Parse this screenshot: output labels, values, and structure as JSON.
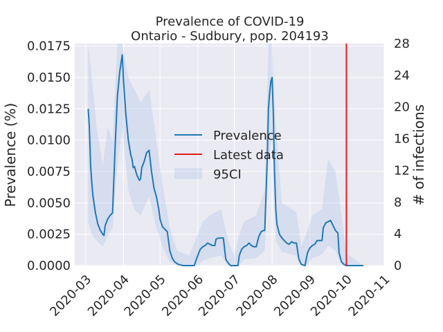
{
  "chart_data": {
    "type": "line",
    "title": "Prevalence of COVID-19",
    "subtitle": "Ontario - Sudbury, pop. 204193",
    "ylabel": "Prevalence (%)",
    "y2label": "# of infections",
    "ylim": [
      0,
      0.0177
    ],
    "y2lim": [
      0,
      28
    ],
    "xlim": [
      "2020-02-21",
      "2020-11-01"
    ],
    "y_ticks": [
      "0.0000",
      "0.0025",
      "0.0050",
      "0.0075",
      "0.0100",
      "0.0125",
      "0.0150",
      "0.0175"
    ],
    "y2_ticks": [
      "0",
      "4",
      "8",
      "12",
      "16",
      "20",
      "24",
      "28"
    ],
    "x_ticks": [
      "2020-03",
      "2020-04",
      "2020-05",
      "2020-06",
      "2020-07",
      "2020-08",
      "2020-09",
      "2020-10",
      "2020-11"
    ],
    "grid": true,
    "legend_position": "center",
    "latest_data_date": "2020-10-01",
    "series": [
      {
        "name": "Prevalence",
        "color": "#1f77b4",
        "points": [
          [
            "2020-03-03",
            0.0125
          ],
          [
            "2020-03-04",
            0.011
          ],
          [
            "2020-03-05",
            0.008
          ],
          [
            "2020-03-06",
            0.0066
          ],
          [
            "2020-03-07",
            0.0055
          ],
          [
            "2020-03-09",
            0.0042
          ],
          [
            "2020-03-11",
            0.0033
          ],
          [
            "2020-03-13",
            0.0028
          ],
          [
            "2020-03-15",
            0.0025
          ],
          [
            "2020-03-16",
            0.0024
          ],
          [
            "2020-03-17",
            0.0032
          ],
          [
            "2020-03-19",
            0.0037
          ],
          [
            "2020-03-21",
            0.004
          ],
          [
            "2020-03-23",
            0.0042
          ],
          [
            "2020-03-25",
            0.0092
          ],
          [
            "2020-03-27",
            0.0135
          ],
          [
            "2020-03-29",
            0.0155
          ],
          [
            "2020-03-31",
            0.0168
          ],
          [
            "2020-04-01",
            0.0148
          ],
          [
            "2020-04-03",
            0.012
          ],
          [
            "2020-04-05",
            0.01
          ],
          [
            "2020-04-07",
            0.0088
          ],
          [
            "2020-04-08",
            0.0085
          ],
          [
            "2020-04-09",
            0.0078
          ],
          [
            "2020-04-10",
            0.0079
          ],
          [
            "2020-04-12",
            0.0072
          ],
          [
            "2020-04-14",
            0.0068
          ],
          [
            "2020-04-15",
            0.0069
          ],
          [
            "2020-04-16",
            0.0078
          ],
          [
            "2020-04-18",
            0.0083
          ],
          [
            "2020-04-20",
            0.009
          ],
          [
            "2020-04-22",
            0.0092
          ],
          [
            "2020-04-24",
            0.0075
          ],
          [
            "2020-04-26",
            0.0062
          ],
          [
            "2020-04-28",
            0.0055
          ],
          [
            "2020-04-30",
            0.0045
          ],
          [
            "2020-05-01",
            0.0037
          ],
          [
            "2020-05-03",
            0.0031
          ],
          [
            "2020-05-05",
            0.0029
          ],
          [
            "2020-05-07",
            0.0027
          ],
          [
            "2020-05-09",
            0.0012
          ],
          [
            "2020-05-11",
            0.0006
          ],
          [
            "2020-05-13",
            0.0003
          ],
          [
            "2020-05-16",
            0.0001
          ],
          [
            "2020-05-20",
            0.0
          ],
          [
            "2020-05-25",
            0.0
          ],
          [
            "2020-05-29",
            0.0
          ],
          [
            "2020-06-01",
            0.0008
          ],
          [
            "2020-06-03",
            0.0013
          ],
          [
            "2020-06-05",
            0.0015
          ],
          [
            "2020-06-07",
            0.0016
          ],
          [
            "2020-06-09",
            0.0018
          ],
          [
            "2020-06-11",
            0.0017
          ],
          [
            "2020-06-13",
            0.0016
          ],
          [
            "2020-06-15",
            0.0016
          ],
          [
            "2020-06-16",
            0.0021
          ],
          [
            "2020-06-18",
            0.0022
          ],
          [
            "2020-06-20",
            0.0022
          ],
          [
            "2020-06-22",
            0.0022
          ],
          [
            "2020-06-24",
            0.0005
          ],
          [
            "2020-06-26",
            0.0002
          ],
          [
            "2020-06-28",
            0.0
          ],
          [
            "2020-07-01",
            0.0
          ],
          [
            "2020-07-04",
            0.0
          ],
          [
            "2020-07-05",
            0.0008
          ],
          [
            "2020-07-07",
            0.0013
          ],
          [
            "2020-07-09",
            0.0015
          ],
          [
            "2020-07-11",
            0.0016
          ],
          [
            "2020-07-13",
            0.0018
          ],
          [
            "2020-07-15",
            0.0016
          ],
          [
            "2020-07-17",
            0.0015
          ],
          [
            "2020-07-19",
            0.0015
          ],
          [
            "2020-07-21",
            0.0023
          ],
          [
            "2020-07-23",
            0.0027
          ],
          [
            "2020-07-25",
            0.0028
          ],
          [
            "2020-07-26",
            0.0028
          ],
          [
            "2020-07-28",
            0.0085
          ],
          [
            "2020-07-29",
            0.0125
          ],
          [
            "2020-07-30",
            0.0138
          ],
          [
            "2020-07-31",
            0.0147
          ],
          [
            "2020-08-01",
            0.015
          ],
          [
            "2020-08-02",
            0.012
          ],
          [
            "2020-08-03",
            0.0075
          ],
          [
            "2020-08-04",
            0.0045
          ],
          [
            "2020-08-05",
            0.0033
          ],
          [
            "2020-08-07",
            0.0025
          ],
          [
            "2020-08-09",
            0.0022
          ],
          [
            "2020-08-11",
            0.002
          ],
          [
            "2020-08-13",
            0.0018
          ],
          [
            "2020-08-15",
            0.0017
          ],
          [
            "2020-08-17",
            0.0019
          ],
          [
            "2020-08-19",
            0.0018
          ],
          [
            "2020-08-21",
            0.0018
          ],
          [
            "2020-08-23",
            0.0005
          ],
          [
            "2020-08-25",
            0.0001
          ],
          [
            "2020-08-28",
            0.0
          ],
          [
            "2020-08-30",
            0.001
          ],
          [
            "2020-09-01",
            0.0014
          ],
          [
            "2020-09-03",
            0.0016
          ],
          [
            "2020-09-05",
            0.0017
          ],
          [
            "2020-09-07",
            0.002
          ],
          [
            "2020-09-09",
            0.002
          ],
          [
            "2020-09-11",
            0.002
          ],
          [
            "2020-09-12",
            0.003
          ],
          [
            "2020-09-14",
            0.0034
          ],
          [
            "2020-09-16",
            0.0035
          ],
          [
            "2020-09-18",
            0.0036
          ],
          [
            "2020-09-20",
            0.0032
          ],
          [
            "2020-09-22",
            0.0028
          ],
          [
            "2020-09-24",
            0.0026
          ],
          [
            "2020-09-25",
            0.001
          ],
          [
            "2020-09-27",
            0.0003
          ],
          [
            "2020-09-29",
            0.0001
          ],
          [
            "2020-10-01",
            0.0
          ],
          [
            "2020-10-05",
            0.0
          ],
          [
            "2020-10-10",
            0.0
          ],
          [
            "2020-10-15",
            0.0
          ]
        ]
      },
      {
        "name": "95CI",
        "color": "#aec7e8",
        "lower": [
          [
            "2020-03-03",
            0.0035
          ],
          [
            "2020-03-06",
            0.0025
          ],
          [
            "2020-03-10",
            0.002
          ],
          [
            "2020-03-15",
            0.0015
          ],
          [
            "2020-03-19",
            0.0024
          ],
          [
            "2020-03-23",
            0.003
          ],
          [
            "2020-03-27",
            0.008
          ],
          [
            "2020-03-31",
            0.011
          ],
          [
            "2020-04-05",
            0.006
          ],
          [
            "2020-04-10",
            0.0045
          ],
          [
            "2020-04-15",
            0.004
          ],
          [
            "2020-04-22",
            0.0055
          ],
          [
            "2020-04-28",
            0.003
          ],
          [
            "2020-05-03",
            0.0015
          ],
          [
            "2020-05-09",
            0.0003
          ],
          [
            "2020-05-15",
            0.0
          ],
          [
            "2020-06-01",
            0.0
          ],
          [
            "2020-06-05",
            0.0004
          ],
          [
            "2020-06-11",
            0.0006
          ],
          [
            "2020-06-20",
            0.0008
          ],
          [
            "2020-06-26",
            0.0
          ],
          [
            "2020-07-05",
            0.0
          ],
          [
            "2020-07-09",
            0.0005
          ],
          [
            "2020-07-19",
            0.0006
          ],
          [
            "2020-07-26",
            0.0012
          ],
          [
            "2020-07-29",
            0.0085
          ],
          [
            "2020-08-01",
            0.01
          ],
          [
            "2020-08-04",
            0.002
          ],
          [
            "2020-08-09",
            0.0011
          ],
          [
            "2020-08-17",
            0.0009
          ],
          [
            "2020-08-21",
            0.0008
          ],
          [
            "2020-08-25",
            0.0
          ],
          [
            "2020-08-30",
            0.0
          ],
          [
            "2020-09-03",
            0.0006
          ],
          [
            "2020-09-11",
            0.0009
          ],
          [
            "2020-09-16",
            0.0016
          ],
          [
            "2020-09-22",
            0.0012
          ],
          [
            "2020-09-27",
            0.0
          ],
          [
            "2020-10-15",
            0.0
          ]
        ],
        "upper": [
          [
            "2020-03-03",
            0.0177
          ],
          [
            "2020-03-06",
            0.015
          ],
          [
            "2020-03-10",
            0.011
          ],
          [
            "2020-03-15",
            0.008
          ],
          [
            "2020-03-19",
            0.011
          ],
          [
            "2020-03-23",
            0.01
          ],
          [
            "2020-03-27",
            0.0177
          ],
          [
            "2020-03-31",
            0.0177
          ],
          [
            "2020-04-05",
            0.015
          ],
          [
            "2020-04-10",
            0.014
          ],
          [
            "2020-04-15",
            0.013
          ],
          [
            "2020-04-22",
            0.014
          ],
          [
            "2020-04-28",
            0.01
          ],
          [
            "2020-05-03",
            0.0065
          ],
          [
            "2020-05-09",
            0.003
          ],
          [
            "2020-05-15",
            0.0012
          ],
          [
            "2020-05-25",
            0.0008
          ],
          [
            "2020-06-01",
            0.0025
          ],
          [
            "2020-06-05",
            0.0035
          ],
          [
            "2020-06-11",
            0.004
          ],
          [
            "2020-06-20",
            0.0045
          ],
          [
            "2020-06-26",
            0.002
          ],
          [
            "2020-07-01",
            0.0008
          ],
          [
            "2020-07-05",
            0.0025
          ],
          [
            "2020-07-09",
            0.0035
          ],
          [
            "2020-07-19",
            0.004
          ],
          [
            "2020-07-26",
            0.006
          ],
          [
            "2020-07-29",
            0.0177
          ],
          [
            "2020-08-01",
            0.0177
          ],
          [
            "2020-08-04",
            0.011
          ],
          [
            "2020-08-09",
            0.005
          ],
          [
            "2020-08-17",
            0.0045
          ],
          [
            "2020-08-21",
            0.0042
          ],
          [
            "2020-08-25",
            0.0015
          ],
          [
            "2020-08-30",
            0.0028
          ],
          [
            "2020-09-03",
            0.004
          ],
          [
            "2020-09-11",
            0.0045
          ],
          [
            "2020-09-16",
            0.0085
          ],
          [
            "2020-09-22",
            0.0075
          ],
          [
            "2020-09-27",
            0.004
          ],
          [
            "2020-10-01",
            0.001
          ],
          [
            "2020-10-15",
            0.0
          ]
        ]
      }
    ],
    "latest_data": {
      "name": "Latest data",
      "color": "#e31a1c"
    },
    "legend": [
      "Prevalence",
      "Latest data",
      "95CI"
    ]
  }
}
